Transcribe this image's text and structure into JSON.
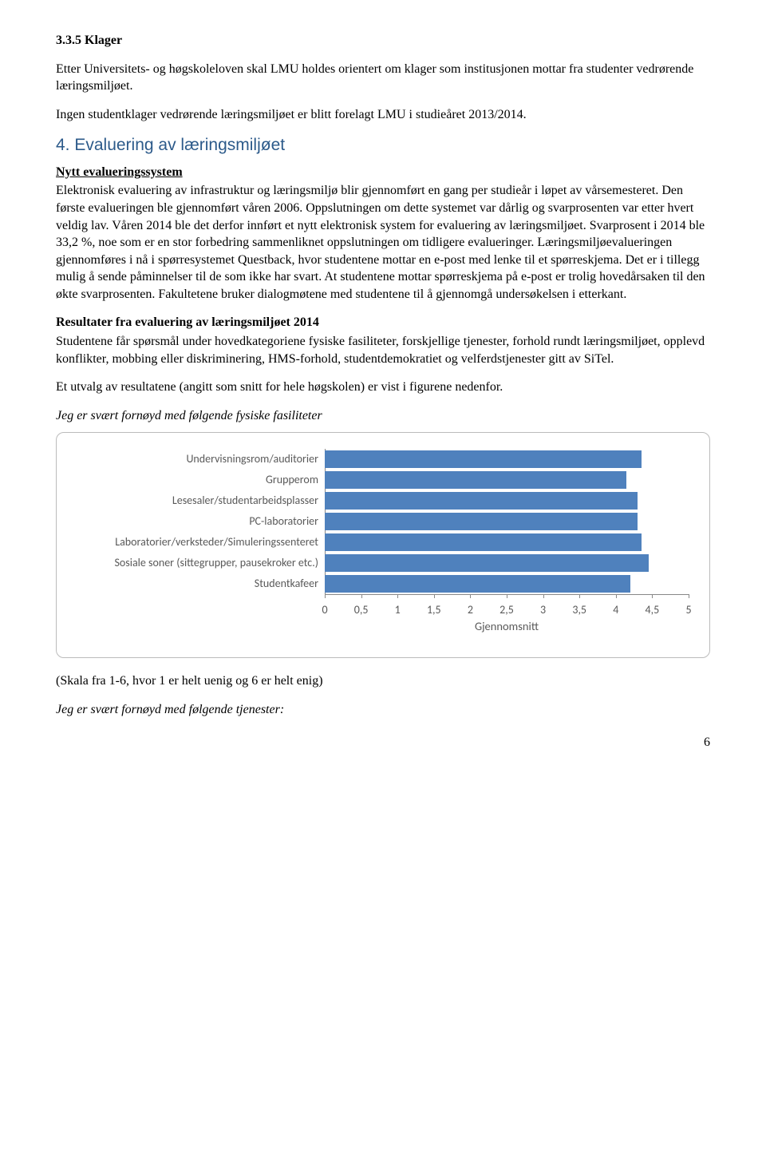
{
  "section335": {
    "heading": "3.3.5 Klager",
    "p1": "Etter Universitets- og høgskoleloven skal LMU holdes orientert om klager som institusjonen mottar fra studenter vedrørende læringsmiljøet.",
    "p2": "Ingen studentklager vedrørende læringsmiljøet er blitt forelagt LMU i studieåret 2013/2014."
  },
  "section4": {
    "heading": "4. Evaluering av læringsmiljøet",
    "sub1": "Nytt evalueringssystem",
    "p1": "Elektronisk evaluering av infrastruktur og læringsmiljø blir gjennomført en gang per studieår i løpet av vårsemesteret. Den første evalueringen ble gjennomført våren 2006. Oppslutningen om dette systemet var dårlig og svarprosenten var etter hvert veldig lav. Våren 2014 ble det derfor innført et nytt elektronisk system for evaluering av læringsmiljøet. Svarprosent i 2014 ble 33,2 %, noe som er en stor forbedring sammenliknet oppslutningen om tidligere evalueringer. Læringsmiljøevalueringen gjennomføres i nå i spørresystemet Questback, hvor studentene mottar en e-post med lenke til et spørreskjema. Det er i tillegg mulig å sende påminnelser til de som ikke har svart. At studentene mottar spørreskjema på e-post er trolig hovedårsaken til den økte svarprosenten. Fakultetene bruker dialogmøtene med studentene til å gjennomgå undersøkelsen i etterkant.",
    "sub2": "Resultater fra evaluering av læringsmiljøet 2014",
    "p2": "Studentene får spørsmål under hovedkategoriene fysiske fasiliteter, forskjellige tjenester, forhold rundt læringsmiljøet, opplevd konflikter, mobbing eller diskriminering, HMS-forhold, studentdemokratiet og velferdstjenester gitt av SiTel.",
    "p3": "Et utvalg av resultatene (angitt som snitt for hele høgskolen) er vist i figurene nedenfor.",
    "chartTitle": "Jeg er svært fornøyd med følgende fysiske fasiliteter"
  },
  "chart": {
    "type": "bar",
    "orientation": "horizontal",
    "xmin": 0,
    "xmax": 5,
    "xtick_step": 0.5,
    "xticks": [
      "0",
      "0,5",
      "1",
      "1,5",
      "2",
      "2,5",
      "3",
      "3,5",
      "4",
      "4,5",
      "5"
    ],
    "xlabel": "Gjennomsnitt",
    "bar_color": "#4f81bd",
    "border_color": "#bbbbbb",
    "axis_color": "#888888",
    "label_color": "#595959",
    "label_fontsize": 14,
    "categories": [
      "Undervisningsrom/auditorier",
      "Grupperom",
      "Lesesaler/studentarbeidsplasser",
      "PC-laboratorier",
      "Laboratorier/verksteder/Simuleringssenteret",
      "Sosiale soner (sittegrupper, pausekroker etc.)",
      "Studentkafeer"
    ],
    "values": [
      4.35,
      4.15,
      4.3,
      4.3,
      4.35,
      4.45,
      4.2
    ]
  },
  "scaleNote": "(Skala fra 1-6, hvor 1 er helt uenig og 6 er helt enig)",
  "nextTitle": "Jeg er svært fornøyd med følgende tjenester:",
  "pageNumber": "6"
}
